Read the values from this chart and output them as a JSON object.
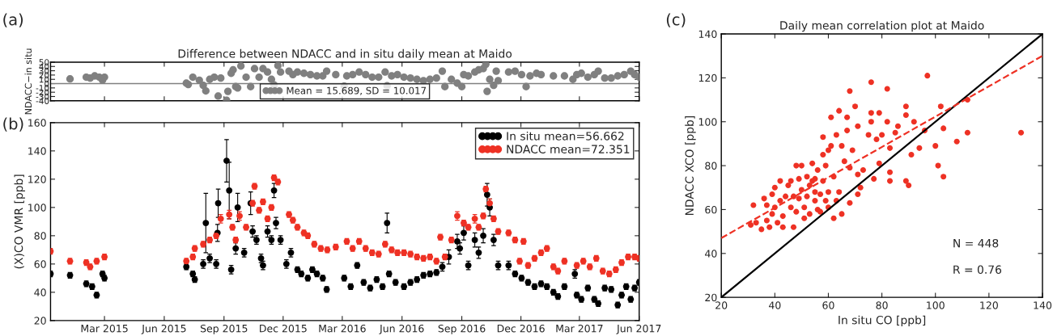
{
  "chart_data": [
    {
      "type": "scatter",
      "title": "Difference between NDACC and in situ daily mean at Maido",
      "ylabel": "NDACC−in situ",
      "annotations": [
        "(a)"
      ],
      "xlim": [
        "2014-12-08",
        "2017-06-01"
      ],
      "xticks": [
        {
          "value": "2015-03-01",
          "label": null
        },
        {
          "value": "2015-06-01",
          "label": null
        },
        {
          "value": "2015-09-01",
          "label": null
        },
        {
          "value": "2015-12-01",
          "label": null
        },
        {
          "value": "2016-03-01",
          "label": null
        },
        {
          "value": "2016-06-01",
          "label": null
        },
        {
          "value": "2016-09-01",
          "label": null
        },
        {
          "value": "2016-12-01",
          "label": null
        },
        {
          "value": "2017-03-01",
          "label": null
        },
        {
          "value": "2017-06-01",
          "label": null
        }
      ],
      "ylim": [
        -40,
        50
      ],
      "yticks": [
        -40,
        -30,
        -20,
        -10,
        0,
        10,
        20,
        30,
        40,
        50
      ],
      "tick_labels": "y",
      "legend": "bottom",
      "marker": "circle",
      "ref_lines": [
        {
          "axis": "y",
          "value": 0,
          "color": "#808080"
        }
      ],
      "series": [
        {
          "name": "Mean = 15.689, SD = 10.017",
          "color": "#808080",
          "x": [
            "2015-01-07",
            "2015-02-01",
            "2015-02-07",
            "2015-02-14",
            "2015-02-21",
            "2015-02-26",
            "2015-03-01",
            "2015-07-05",
            "2015-07-08",
            "2015-07-15",
            "2015-07-25",
            "2015-07-31",
            "2015-08-04",
            "2015-08-10",
            "2015-08-17",
            "2015-08-23",
            "2015-08-27",
            "2015-09-05",
            "2015-09-07",
            "2015-09-12",
            "2015-09-15",
            "2015-09-19",
            "2015-09-22",
            "2015-09-27",
            "2015-10-05",
            "2015-10-12",
            "2015-10-18",
            "2015-10-25",
            "2015-10-31",
            "2015-11-07",
            "2015-11-13",
            "2015-11-17",
            "2015-11-23",
            "2015-11-27",
            "2015-12-10",
            "2015-12-16",
            "2015-12-23",
            "2016-01-02",
            "2016-01-12",
            "2016-01-22",
            "2016-01-31",
            "2016-02-06",
            "2016-02-20",
            "2016-03-04",
            "2016-03-08",
            "2016-03-17",
            "2016-03-27",
            "2016-04-06",
            "2016-04-16",
            "2016-04-26",
            "2016-05-06",
            "2016-05-09",
            "2016-05-16",
            "2016-05-25",
            "2016-06-04",
            "2016-06-14",
            "2016-06-24",
            "2016-07-04",
            "2016-07-14",
            "2016-07-24",
            "2016-08-02",
            "2016-08-06",
            "2016-08-16",
            "2016-08-25",
            "2016-09-01",
            "2016-09-04",
            "2016-09-11",
            "2016-09-21",
            "2016-09-27",
            "2016-10-04",
            "2016-10-08",
            "2016-10-10",
            "2016-10-14",
            "2016-10-20",
            "2016-10-24",
            "2016-10-27",
            "2016-11-12",
            "2016-11-22",
            "2016-12-02",
            "2016-12-09",
            "2016-12-15",
            "2016-12-25",
            "2017-01-01",
            "2017-01-20",
            "2017-02-06",
            "2017-02-19",
            "2017-02-25",
            "2017-03-04",
            "2017-03-14",
            "2017-03-24",
            "2017-03-30",
            "2017-04-09",
            "2017-04-19",
            "2017-04-29",
            "2017-05-09",
            "2017-05-19",
            "2017-05-25",
            "2017-06-01"
          ],
          "values": [
            11,
            15,
            13,
            18,
            15,
            8,
            15,
            1,
            -2,
            15,
            8,
            -4,
            -17,
            10,
            15,
            -29,
            13,
            -39,
            -18,
            24,
            32,
            -7,
            -10,
            41,
            15,
            -7,
            35,
            15,
            35,
            27,
            10,
            -3,
            42,
            27,
            29,
            21,
            27,
            24,
            21,
            18,
            18,
            29,
            21,
            -6,
            18,
            21,
            27,
            21,
            15,
            15,
            27,
            -5,
            18,
            21,
            15,
            13,
            10,
            7,
            10,
            13,
            29,
            -7,
            10,
            1,
            -7,
            21,
            18,
            27,
            32,
            35,
            45,
            -18,
            10,
            -4,
            29,
            7,
            27,
            29,
            21,
            -7,
            18,
            24,
            21,
            18,
            18,
            10,
            21,
            24,
            15,
            21,
            29,
            13,
            13,
            18,
            21,
            29,
            21,
            15
          ]
        }
      ]
    },
    {
      "type": "scatter",
      "ylabel": "(X)CO VMR [ppb]",
      "annotations": [
        "(b)"
      ],
      "xlim": [
        "2014-12-08",
        "2017-06-01"
      ],
      "xticks": [
        {
          "value": "2015-03-01",
          "label": "Mar 2015"
        },
        {
          "value": "2015-06-01",
          "label": "Jun 2015"
        },
        {
          "value": "2015-09-01",
          "label": "Sep 2015"
        },
        {
          "value": "2015-12-01",
          "label": "Dec 2015"
        },
        {
          "value": "2016-03-01",
          "label": "Mar 2016"
        },
        {
          "value": "2016-06-01",
          "label": "Jun 2016"
        },
        {
          "value": "2016-09-01",
          "label": "Sep 2016"
        },
        {
          "value": "2016-12-01",
          "label": "Dec 2016"
        },
        {
          "value": "2017-03-01",
          "label": "Mar 2017"
        },
        {
          "value": "2017-06-01",
          "label": "Jun 2017"
        }
      ],
      "ylim": [
        20,
        160
      ],
      "yticks": [
        20,
        40,
        60,
        80,
        100,
        120,
        140,
        160
      ],
      "legend": "top right",
      "marker": "circle",
      "series": [
        {
          "name": "In situ mean=56.662",
          "color": "#000000",
          "x": [
            "2014-12-08",
            "2015-01-07",
            "2015-02-01",
            "2015-02-10",
            "2015-02-17",
            "2015-02-26",
            "2015-03-01",
            "2015-07-05",
            "2015-07-15",
            "2015-07-18",
            "2015-07-31",
            "2015-08-04",
            "2015-08-10",
            "2015-08-20",
            "2015-08-22",
            "2015-08-23",
            "2015-09-05",
            "2015-09-09",
            "2015-09-12",
            "2015-09-19",
            "2015-09-22",
            "2015-10-02",
            "2015-10-12",
            "2015-10-15",
            "2015-10-21",
            "2015-10-28",
            "2015-10-31",
            "2015-11-07",
            "2015-11-13",
            "2015-11-17",
            "2015-11-20",
            "2015-11-27",
            "2015-12-06",
            "2015-12-13",
            "2015-12-23",
            "2015-12-29",
            "2016-01-08",
            "2016-01-15",
            "2016-01-22",
            "2016-01-31",
            "2016-02-06",
            "2016-03-04",
            "2016-03-14",
            "2016-03-24",
            "2016-04-03",
            "2016-04-13",
            "2016-04-23",
            "2016-05-02",
            "2016-05-09",
            "2016-05-12",
            "2016-05-22",
            "2016-06-04",
            "2016-06-14",
            "2016-06-24",
            "2016-07-04",
            "2016-07-14",
            "2016-07-24",
            "2016-08-02",
            "2016-08-12",
            "2016-08-25",
            "2016-08-29",
            "2016-09-04",
            "2016-09-11",
            "2016-09-21",
            "2016-09-27",
            "2016-10-04",
            "2016-10-10",
            "2016-10-14",
            "2016-10-20",
            "2016-10-27",
            "2016-11-12",
            "2016-11-22",
            "2016-12-02",
            "2016-12-12",
            "2016-12-22",
            "2017-01-01",
            "2017-01-10",
            "2017-01-20",
            "2017-01-27",
            "2017-02-06",
            "2017-02-22",
            "2017-02-25",
            "2017-03-04",
            "2017-03-14",
            "2017-03-24",
            "2017-03-30",
            "2017-04-09",
            "2017-04-19",
            "2017-04-29",
            "2017-05-05",
            "2017-05-12",
            "2017-05-19",
            "2017-05-25",
            "2017-06-01"
          ],
          "values": [
            53,
            52,
            46,
            44,
            38,
            53,
            50,
            58,
            53,
            49,
            60,
            89,
            64,
            60,
            82,
            103,
            133,
            112,
            56,
            71,
            100,
            68,
            103,
            83,
            77,
            64,
            59,
            83,
            77,
            112,
            89,
            77,
            60,
            68,
            56,
            53,
            50,
            56,
            53,
            50,
            42,
            50,
            44,
            59,
            47,
            43,
            49,
            44,
            89,
            53,
            47,
            44,
            47,
            49,
            52,
            53,
            54,
            58,
            65,
            76,
            71,
            82,
            59,
            77,
            68,
            80,
            109,
            100,
            77,
            59,
            59,
            53,
            50,
            47,
            44,
            46,
            44,
            40,
            37,
            44,
            53,
            38,
            35,
            43,
            35,
            32,
            43,
            42,
            31,
            38,
            44,
            35,
            43,
            47
          ],
          "errors": [
            2,
            2,
            2,
            2,
            2,
            2,
            2,
            2,
            2,
            2,
            3,
            21,
            3,
            3,
            6,
            10,
            15,
            20,
            3,
            4,
            10,
            3,
            8,
            4,
            3,
            3,
            3,
            4,
            3,
            5,
            4,
            3,
            3,
            3,
            2,
            2,
            2,
            2,
            2,
            2,
            2,
            2,
            2,
            2,
            2,
            2,
            2,
            2,
            7,
            2,
            2,
            2,
            2,
            2,
            2,
            2,
            2,
            3,
            5,
            5,
            4,
            5,
            3,
            5,
            4,
            5,
            8,
            6,
            4,
            3,
            3,
            2,
            2,
            2,
            2,
            2,
            2,
            2,
            2,
            2,
            3,
            2,
            2,
            2,
            2,
            2,
            2,
            2,
            2,
            2,
            2,
            2,
            2,
            2
          ]
        },
        {
          "name": "NDACC mean=72.351",
          "color": "#ee3124",
          "x": [
            "2014-12-08",
            "2015-01-07",
            "2015-02-01",
            "2015-02-07",
            "2015-02-17",
            "2015-03-01",
            "2015-07-05",
            "2015-07-15",
            "2015-07-18",
            "2015-07-31",
            "2015-08-10",
            "2015-08-20",
            "2015-08-27",
            "2015-09-09",
            "2015-09-14",
            "2015-09-19",
            "2015-09-25",
            "2015-10-05",
            "2015-10-15",
            "2015-10-18",
            "2015-10-25",
            "2015-10-31",
            "2015-11-07",
            "2015-11-13",
            "2015-11-17",
            "2015-11-23",
            "2015-12-10",
            "2015-12-16",
            "2015-12-23",
            "2016-01-02",
            "2016-01-08",
            "2016-01-18",
            "2016-01-28",
            "2016-02-07",
            "2016-02-20",
            "2016-03-08",
            "2016-03-17",
            "2016-03-27",
            "2016-04-06",
            "2016-04-16",
            "2016-04-26",
            "2016-05-06",
            "2016-05-16",
            "2016-05-25",
            "2016-06-04",
            "2016-06-14",
            "2016-06-24",
            "2016-07-04",
            "2016-07-14",
            "2016-07-24",
            "2016-07-30",
            "2016-08-06",
            "2016-08-16",
            "2016-08-25",
            "2016-09-04",
            "2016-09-11",
            "2016-09-21",
            "2016-09-27",
            "2016-10-04",
            "2016-10-08",
            "2016-10-14",
            "2016-10-20",
            "2016-10-27",
            "2016-11-12",
            "2016-11-22",
            "2016-11-29",
            "2016-12-05",
            "2016-12-12",
            "2016-12-22",
            "2017-01-01",
            "2017-01-10",
            "2017-01-20",
            "2017-01-27",
            "2017-02-06",
            "2017-02-25",
            "2017-03-07",
            "2017-03-17",
            "2017-03-27",
            "2017-04-06",
            "2017-04-16",
            "2017-04-26",
            "2017-05-05",
            "2017-05-15",
            "2017-05-25",
            "2017-06-01"
          ],
          "values": [
            69,
            62,
            61,
            58,
            62,
            65,
            62,
            65,
            71,
            74,
            77,
            80,
            92,
            95,
            86,
            77,
            94,
            86,
            103,
            115,
            98,
            104,
            92,
            100,
            121,
            118,
            95,
            91,
            86,
            82,
            80,
            74,
            71,
            70,
            72,
            76,
            71,
            76,
            71,
            68,
            67,
            74,
            70,
            68,
            68,
            67,
            65,
            64,
            65,
            62,
            79,
            65,
            77,
            94,
            89,
            86,
            92,
            86,
            94,
            113,
            103,
            92,
            83,
            82,
            77,
            62,
            76,
            59,
            64,
            68,
            71,
            58,
            55,
            62,
            59,
            62,
            58,
            64,
            55,
            53,
            56,
            61,
            65,
            65,
            64
          ],
          "errors": [
            2,
            2,
            2,
            2,
            2,
            2,
            2,
            2,
            2,
            2,
            2,
            2,
            3,
            3,
            2,
            2,
            3,
            2,
            2,
            2,
            2,
            2,
            2,
            2,
            2,
            2,
            2,
            2,
            2,
            2,
            2,
            2,
            2,
            2,
            2,
            2,
            2,
            2,
            2,
            2,
            2,
            2,
            2,
            2,
            2,
            2,
            2,
            2,
            2,
            2,
            2,
            2,
            2,
            3,
            2,
            2,
            3,
            2,
            2,
            2,
            3,
            2,
            2,
            2,
            2,
            2,
            2,
            2,
            2,
            2,
            2,
            2,
            2,
            2,
            2,
            2,
            2,
            2,
            2,
            2,
            2,
            2,
            2,
            2,
            2
          ]
        }
      ]
    },
    {
      "type": "scatter",
      "title": "Daily mean correlation plot at Maido",
      "xlabel": "In situ CO [ppb]",
      "ylabel": "NDACC XCO [ppb]",
      "annotations": [
        "(c)",
        "N = 448",
        "R = 0.76"
      ],
      "xlim": [
        20,
        140
      ],
      "xticks": [
        20,
        40,
        60,
        80,
        100,
        120,
        140
      ],
      "ylim": [
        20,
        140
      ],
      "yticks": [
        20,
        40,
        60,
        80,
        100,
        120,
        140
      ],
      "series": [
        {
          "color": "#ee3124",
          "marker": "circle",
          "x": [
            31,
            32,
            33,
            36,
            35,
            37,
            37,
            38,
            39,
            39,
            40,
            40,
            41,
            42,
            42,
            43,
            43,
            44,
            45,
            46,
            46,
            47,
            47,
            48,
            48,
            49,
            49,
            50,
            50,
            51,
            51,
            52,
            52,
            53,
            53,
            54,
            54,
            55,
            55,
            55,
            56,
            56,
            57,
            57,
            58,
            58,
            58,
            59,
            59,
            60,
            60,
            60,
            61,
            61,
            62,
            62,
            63,
            63,
            64,
            64,
            65,
            65,
            66,
            67,
            67,
            68,
            68,
            68,
            69,
            70,
            71,
            71,
            71,
            72,
            73,
            75,
            76,
            76,
            76,
            77,
            78,
            79,
            79,
            80,
            82,
            82,
            83,
            83,
            83,
            85,
            86,
            89,
            89,
            89,
            90,
            91,
            92,
            94,
            96,
            97,
            100,
            101,
            102,
            103,
            103,
            108,
            112,
            112,
            132
          ],
          "values": [
            53,
            62,
            54,
            65,
            51,
            62,
            55,
            52,
            58,
            67,
            70,
            61,
            54,
            64,
            73,
            57,
            52,
            66,
            71,
            61,
            73,
            52,
            66,
            80,
            59,
            74,
            65,
            80,
            69,
            61,
            56,
            75,
            66,
            71,
            58,
            81,
            73,
            64,
            68,
            74,
            60,
            78,
            67,
            59,
            85,
            93,
            73,
            64,
            80,
            87,
            68,
            61,
            102,
            89,
            75,
            56,
            94,
            64,
            68,
            105,
            58,
            89,
            82,
            102,
            96,
            79,
            114,
            63,
            87,
            107,
            98,
            76,
            67,
            70,
            78,
            94,
            104,
            100,
            118,
            74,
            92,
            104,
            81,
            94,
            100,
            115,
            88,
            73,
            77,
            95,
            98,
            73,
            103,
            107,
            71,
            85,
            100,
            88,
            96,
            121,
            89,
            80,
            107,
            75,
            97,
            91,
            110,
            95,
            95
          ]
        },
        {
          "type": "line",
          "color": "#000000",
          "x": [
            20,
            140
          ],
          "values": [
            20,
            140
          ]
        },
        {
          "type": "line",
          "color": "#ee3124",
          "line_style": "dashed",
          "x": [
            20,
            140
          ],
          "values": [
            47,
            130
          ]
        }
      ]
    }
  ]
}
